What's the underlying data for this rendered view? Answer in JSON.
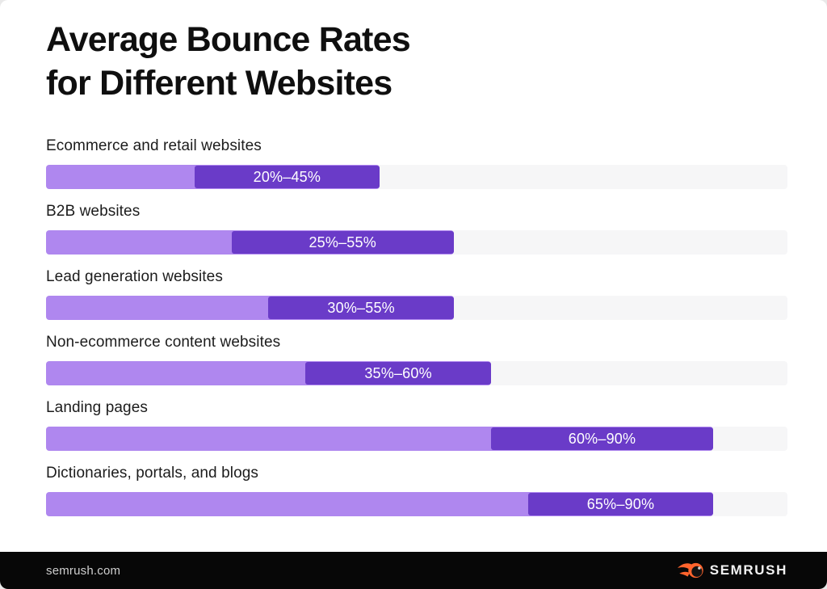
{
  "header": {
    "title_lines": [
      "Average Bounce Rates",
      "for Different Websites"
    ]
  },
  "chart_data": {
    "type": "bar",
    "orientation": "horizontal",
    "title": "Average Bounce Rates for Different Websites",
    "xlim": [
      0,
      100
    ],
    "unit": "%",
    "grid": false,
    "legend": false,
    "categories": [
      "Ecommerce and retail websites",
      "B2B websites",
      "Lead generation websites",
      "Non-ecommerce content websites",
      "Landing pages",
      "Dictionaries, portals, and blogs"
    ],
    "rows": [
      {
        "label": "Ecommerce and retail websites",
        "low": 20,
        "high": 45,
        "range_label": "20%–45%"
      },
      {
        "label": "B2B websites",
        "low": 25,
        "high": 55,
        "range_label": "25%–55%"
      },
      {
        "label": "Lead generation websites",
        "low": 30,
        "high": 55,
        "range_label": "30%–55%"
      },
      {
        "label": "Non-ecommerce content websites",
        "low": 35,
        "high": 60,
        "range_label": "35%–60%"
      },
      {
        "label": "Landing pages",
        "low": 60,
        "high": 90,
        "range_label": "60%–90%"
      },
      {
        "label": "Dictionaries, portals, and blogs",
        "low": 65,
        "high": 90,
        "range_label": "65%–90%"
      }
    ]
  },
  "footer": {
    "site": "semrush.com",
    "brand": "SEMRUSH"
  },
  "colors": {
    "page_bg": "#ffffff",
    "title": "#0f0f0f",
    "label": "#1c1c1c",
    "track": "#f6f6f7",
    "bar_light": "#af87ef",
    "bar_dark": "#6a3bc8",
    "range_text": "#ffffff",
    "footer_bg": "#070707",
    "footer_text": "#cfcfcf",
    "brand_orange": "#ff642d",
    "brand_text": "#f2f2f2"
  }
}
